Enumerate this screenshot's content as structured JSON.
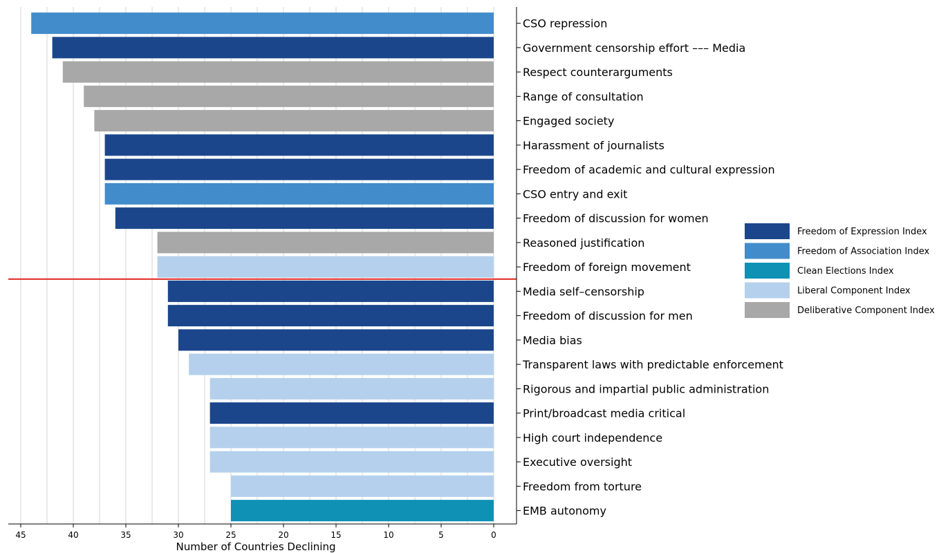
{
  "chart_data": {
    "type": "bar",
    "orientation": "horizontal",
    "x_direction": "reversed",
    "xlabel": "Number of Countries Declining",
    "ylabel": "",
    "xlim": [
      0,
      45
    ],
    "xticks": [
      45,
      40,
      35,
      30,
      25,
      20,
      15,
      10,
      5,
      0
    ],
    "grid": "vertical",
    "legend_position": "right",
    "threshold_after_category": "Freedom of foreign movement",
    "threshold_color": "#e0241b",
    "categories": [
      "CSO repression",
      "Government censorship effort ––– Media",
      "Respect counterarguments",
      "Range of consultation",
      "Engaged society",
      "Harassment of journalists",
      "Freedom of academic and cultural expression",
      "CSO entry and exit",
      "Freedom of discussion for women",
      "Reasoned justification",
      "Freedom of foreign movement",
      "Media self–censorship",
      "Freedom of discussion for men",
      "Media bias",
      "Transparent laws with predictable enforcement",
      "Rigorous and impartial public administration",
      "Print/broadcast media critical",
      "High court independence",
      "Executive oversight",
      "Freedom from torture",
      "EMB autonomy"
    ],
    "values": [
      44,
      42,
      41,
      39,
      38,
      37,
      37,
      37,
      36,
      32,
      32,
      31,
      31,
      30,
      29,
      27,
      27,
      27,
      27,
      25,
      25
    ],
    "groups": [
      1,
      0,
      4,
      4,
      4,
      0,
      0,
      1,
      0,
      4,
      3,
      0,
      0,
      0,
      3,
      3,
      0,
      3,
      3,
      3,
      2
    ],
    "legend": [
      {
        "name": "Freedom of Expression Index",
        "color": "#1b468c"
      },
      {
        "name": "Freedom of Association Index",
        "color": "#428ccb"
      },
      {
        "name": "Clean Elections Index",
        "color": "#0e91b5"
      },
      {
        "name": "Liberal Component Index",
        "color": "#b4d0ec"
      },
      {
        "name": "Deliberative Component Index",
        "color": "#a8a8a8"
      }
    ]
  }
}
